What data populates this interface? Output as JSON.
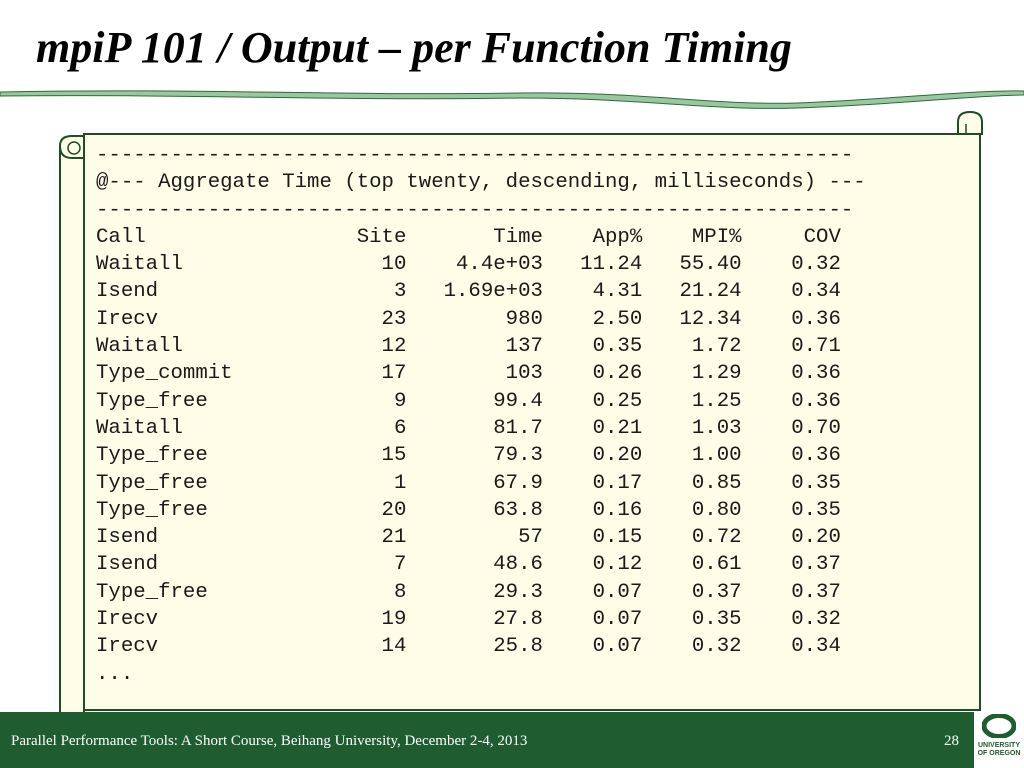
{
  "slide": {
    "title": "mpiP 101 / Output – per Function Timing"
  },
  "listing": {
    "lines": [
      "-------------------------------------------------------------",
      "@--- Aggregate Time (top twenty, descending, milliseconds) ---",
      "-------------------------------------------------------------",
      "Call                 Site       Time    App%    MPI%     COV",
      "Waitall                10    4.4e+03   11.24   55.40    0.32",
      "Isend                   3   1.69e+03    4.31   21.24    0.34",
      "Irecv                  23        980    2.50   12.34    0.36",
      "Waitall                12        137    0.35    1.72    0.71",
      "Type_commit            17        103    0.26    1.29    0.36",
      "Type_free               9       99.4    0.25    1.25    0.36",
      "Waitall                 6       81.7    0.21    1.03    0.70",
      "Type_free              15       79.3    0.20    1.00    0.36",
      "Type_free               1       67.9    0.17    0.85    0.35",
      "Type_free              20       63.8    0.16    0.80    0.35",
      "Isend                  21         57    0.15    0.72    0.20",
      "Isend                   7       48.6    0.12    0.61    0.37",
      "Type_free               8       29.3    0.07    0.37    0.37",
      "Irecv                  19       27.8    0.07    0.35    0.32",
      "Irecv                  14       25.8    0.07    0.32    0.34",
      "..."
    ]
  },
  "footer": {
    "text": "Parallel Performance Tools: A Short Course, Beihang University, December 2-4, 2013",
    "page_number": "28",
    "logo_line1": "UNIVERSITY",
    "logo_line2": "OF OREGON"
  },
  "colors": {
    "footer_green": "#1f5c30",
    "scroll_fill": "#fefee8",
    "scroll_outline": "#1e4d26",
    "wave_fill": "#99c79e"
  }
}
